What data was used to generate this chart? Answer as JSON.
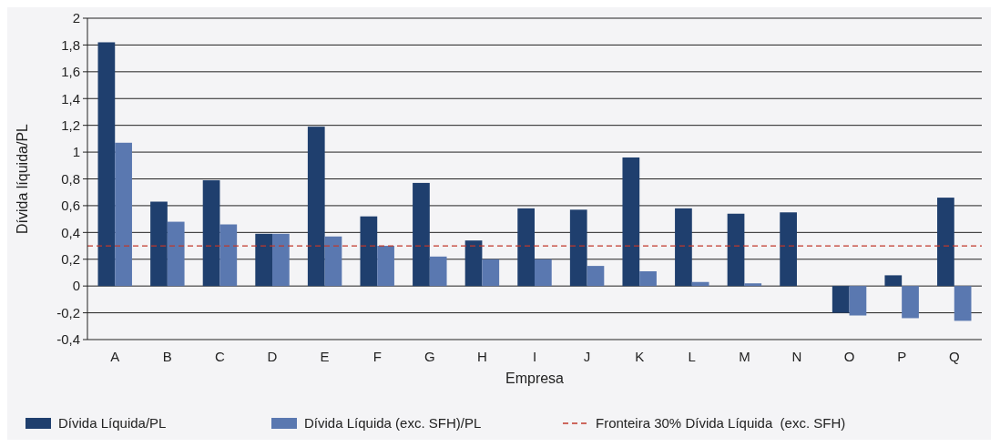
{
  "chart_data": {
    "type": "bar",
    "xlabel": "Empresa",
    "ylabel": "Dívida líquida/PL",
    "categories": [
      "A",
      "B",
      "C",
      "D",
      "E",
      "F",
      "G",
      "H",
      "I",
      "J",
      "K",
      "L",
      "M",
      "N",
      "O",
      "P",
      "Q"
    ],
    "series": [
      {
        "name": "Dívida Líquida/PL",
        "color": "#1f3f6e",
        "values": [
          1.82,
          0.63,
          0.79,
          0.39,
          1.19,
          0.52,
          0.77,
          0.34,
          0.58,
          0.57,
          0.96,
          0.58,
          0.54,
          0.55,
          -0.2,
          0.08,
          0.66
        ]
      },
      {
        "name": "Dívida Líquida (exc. SFH)/PL",
        "color": "#5a78b0",
        "values": [
          1.07,
          0.48,
          0.46,
          0.39,
          0.37,
          0.3,
          0.22,
          0.2,
          0.2,
          0.15,
          0.11,
          0.03,
          0.02,
          null,
          -0.22,
          -0.24,
          -0.26
        ]
      }
    ],
    "ylim": [
      -0.4,
      2
    ],
    "yticks": [
      {
        "value": -0.4,
        "label": "-0,4"
      },
      {
        "value": -0.2,
        "label": "-0,2"
      },
      0,
      {
        "value": 0.2,
        "label": "0,2"
      },
      {
        "value": 0.4,
        "label": "0,4"
      },
      {
        "value": 0.6,
        "label": "0,6"
      },
      {
        "value": 0.8,
        "label": "0,8"
      },
      1,
      {
        "value": 1.2,
        "label": "1,2"
      },
      {
        "value": 1.4,
        "label": "1,4"
      },
      {
        "value": 1.6,
        "label": "1,6"
      },
      {
        "value": 1.8,
        "label": "1,8"
      },
      2
    ],
    "ref_lines": [
      {
        "axis": "y",
        "value": 0.3,
        "label": "Fronteira 30% Dívida Líquida  (exc. SFH)",
        "color": "#c0392b",
        "line_style": "dashed"
      }
    ],
    "grid": "y",
    "legend": "bottom"
  }
}
